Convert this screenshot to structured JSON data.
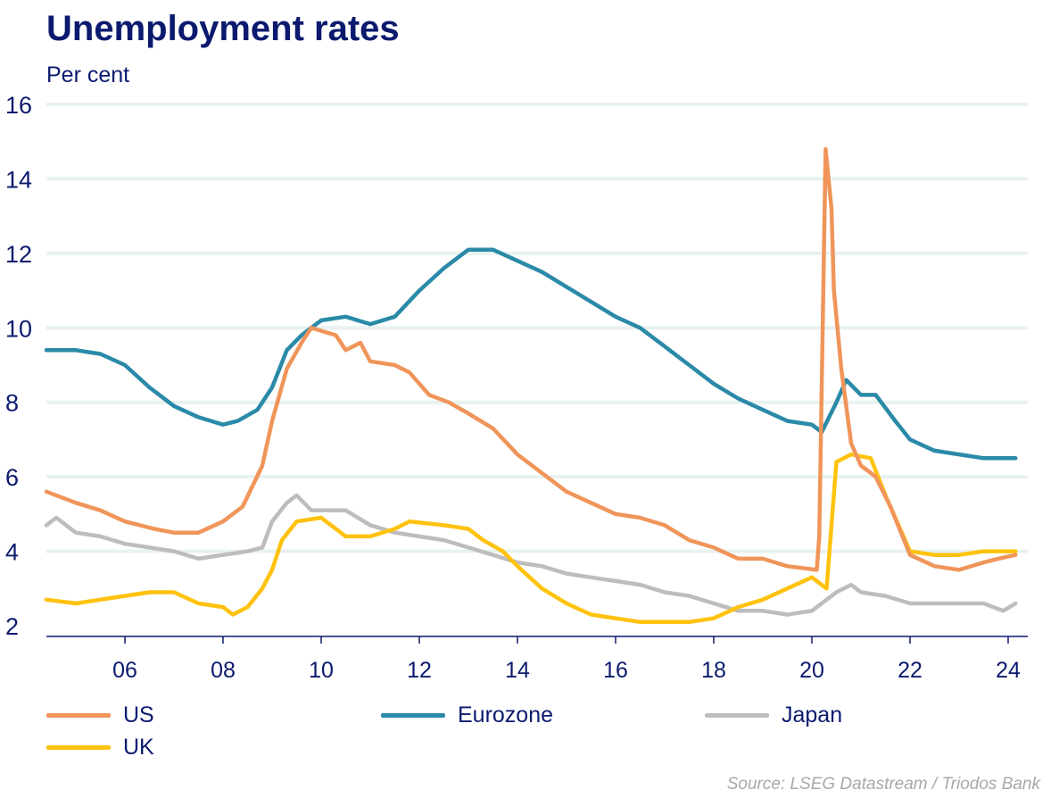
{
  "title": "Unemployment rates",
  "unit_label": "Per cent",
  "source": "Source: LSEG Datastream / Triodos Bank",
  "colors": {
    "axis_text": "#0b1a6e",
    "gridline": "#e8f2f0",
    "us": "#f0955a",
    "eurozone": "#2b8aa8",
    "japan": "#bdbdbd",
    "uk": "#ffc20e"
  },
  "legend": [
    {
      "key": "us",
      "label": "US"
    },
    {
      "key": "eurozone",
      "label": "Eurozone"
    },
    {
      "key": "japan",
      "label": "Japan"
    },
    {
      "key": "uk",
      "label": "UK"
    }
  ],
  "chart_data": {
    "type": "line",
    "title": "Unemployment rates",
    "ylabel": "Per cent",
    "xlabel": "",
    "xlim": [
      2004.4,
      2024.4
    ],
    "ylim": [
      2,
      16
    ],
    "yticks": [
      2,
      4,
      6,
      8,
      10,
      12,
      14,
      16
    ],
    "ytick_labels": [
      "2",
      "4",
      "6",
      "8",
      "10",
      "12",
      "14",
      "16"
    ],
    "xticks": [
      2006,
      2008,
      2010,
      2012,
      2014,
      2016,
      2018,
      2020,
      2022,
      2024
    ],
    "xtick_labels": [
      "06",
      "08",
      "10",
      "12",
      "14",
      "16",
      "18",
      "20",
      "22",
      "24"
    ],
    "grid": "horizontal",
    "legend_position": "bottom",
    "series": [
      {
        "name": "US",
        "key": "us",
        "points": [
          [
            2004.4,
            5.6
          ],
          [
            2005.0,
            5.3
          ],
          [
            2005.5,
            5.1
          ],
          [
            2006.0,
            4.8
          ],
          [
            2006.6,
            4.6
          ],
          [
            2007.0,
            4.5
          ],
          [
            2007.5,
            4.5
          ],
          [
            2008.0,
            4.8
          ],
          [
            2008.4,
            5.2
          ],
          [
            2008.8,
            6.3
          ],
          [
            2009.0,
            7.5
          ],
          [
            2009.3,
            8.9
          ],
          [
            2009.6,
            9.6
          ],
          [
            2009.8,
            10.0
          ],
          [
            2010.3,
            9.8
          ],
          [
            2010.5,
            9.4
          ],
          [
            2010.8,
            9.6
          ],
          [
            2011.0,
            9.1
          ],
          [
            2011.5,
            9.0
          ],
          [
            2011.8,
            8.8
          ],
          [
            2012.2,
            8.2
          ],
          [
            2012.6,
            8.0
          ],
          [
            2013.0,
            7.7
          ],
          [
            2013.5,
            7.3
          ],
          [
            2014.0,
            6.6
          ],
          [
            2014.5,
            6.1
          ],
          [
            2015.0,
            5.6
          ],
          [
            2015.5,
            5.3
          ],
          [
            2016.0,
            5.0
          ],
          [
            2016.5,
            4.9
          ],
          [
            2017.0,
            4.7
          ],
          [
            2017.5,
            4.3
          ],
          [
            2018.0,
            4.1
          ],
          [
            2018.5,
            3.8
          ],
          [
            2019.0,
            3.8
          ],
          [
            2019.5,
            3.6
          ],
          [
            2020.1,
            3.5
          ],
          [
            2020.15,
            4.4
          ],
          [
            2020.28,
            14.8
          ],
          [
            2020.4,
            13.2
          ],
          [
            2020.45,
            11.0
          ],
          [
            2020.6,
            8.9
          ],
          [
            2020.8,
            6.9
          ],
          [
            2021.0,
            6.3
          ],
          [
            2021.3,
            6.0
          ],
          [
            2021.6,
            5.2
          ],
          [
            2022.0,
            3.9
          ],
          [
            2022.5,
            3.6
          ],
          [
            2023.0,
            3.5
          ],
          [
            2023.5,
            3.7
          ],
          [
            2023.8,
            3.8
          ],
          [
            2024.15,
            3.9
          ]
        ]
      },
      {
        "name": "Eurozone",
        "key": "eurozone",
        "points": [
          [
            2004.4,
            9.4
          ],
          [
            2005.0,
            9.4
          ],
          [
            2005.5,
            9.3
          ],
          [
            2006.0,
            9.0
          ],
          [
            2006.5,
            8.4
          ],
          [
            2007.0,
            7.9
          ],
          [
            2007.5,
            7.6
          ],
          [
            2008.0,
            7.4
          ],
          [
            2008.3,
            7.5
          ],
          [
            2008.7,
            7.8
          ],
          [
            2009.0,
            8.4
          ],
          [
            2009.3,
            9.4
          ],
          [
            2009.6,
            9.8
          ],
          [
            2010.0,
            10.2
          ],
          [
            2010.5,
            10.3
          ],
          [
            2011.0,
            10.1
          ],
          [
            2011.5,
            10.3
          ],
          [
            2012.0,
            11.0
          ],
          [
            2012.5,
            11.6
          ],
          [
            2013.0,
            12.1
          ],
          [
            2013.5,
            12.1
          ],
          [
            2014.0,
            11.8
          ],
          [
            2014.5,
            11.5
          ],
          [
            2015.0,
            11.1
          ],
          [
            2015.5,
            10.7
          ],
          [
            2016.0,
            10.3
          ],
          [
            2016.5,
            10.0
          ],
          [
            2017.0,
            9.5
          ],
          [
            2017.5,
            9.0
          ],
          [
            2018.0,
            8.5
          ],
          [
            2018.5,
            8.1
          ],
          [
            2019.0,
            7.8
          ],
          [
            2019.5,
            7.5
          ],
          [
            2020.0,
            7.4
          ],
          [
            2020.2,
            7.2
          ],
          [
            2020.5,
            8.0
          ],
          [
            2020.7,
            8.6
          ],
          [
            2021.0,
            8.2
          ],
          [
            2021.3,
            8.2
          ],
          [
            2021.7,
            7.5
          ],
          [
            2022.0,
            7.0
          ],
          [
            2022.5,
            6.7
          ],
          [
            2023.0,
            6.6
          ],
          [
            2023.5,
            6.5
          ],
          [
            2024.15,
            6.5
          ]
        ]
      },
      {
        "name": "Japan",
        "key": "japan",
        "points": [
          [
            2004.4,
            4.7
          ],
          [
            2004.6,
            4.9
          ],
          [
            2005.0,
            4.5
          ],
          [
            2005.5,
            4.4
          ],
          [
            2006.0,
            4.2
          ],
          [
            2006.5,
            4.1
          ],
          [
            2007.0,
            4.0
          ],
          [
            2007.5,
            3.8
          ],
          [
            2008.0,
            3.9
          ],
          [
            2008.5,
            4.0
          ],
          [
            2008.8,
            4.1
          ],
          [
            2009.0,
            4.8
          ],
          [
            2009.3,
            5.3
          ],
          [
            2009.5,
            5.5
          ],
          [
            2009.8,
            5.1
          ],
          [
            2010.5,
            5.1
          ],
          [
            2011.0,
            4.7
          ],
          [
            2011.5,
            4.5
          ],
          [
            2012.0,
            4.4
          ],
          [
            2012.5,
            4.3
          ],
          [
            2013.0,
            4.1
          ],
          [
            2013.5,
            3.9
          ],
          [
            2014.0,
            3.7
          ],
          [
            2014.5,
            3.6
          ],
          [
            2015.0,
            3.4
          ],
          [
            2015.5,
            3.3
          ],
          [
            2016.0,
            3.2
          ],
          [
            2016.5,
            3.1
          ],
          [
            2017.0,
            2.9
          ],
          [
            2017.5,
            2.8
          ],
          [
            2018.0,
            2.6
          ],
          [
            2018.5,
            2.4
          ],
          [
            2019.0,
            2.4
          ],
          [
            2019.5,
            2.3
          ],
          [
            2020.0,
            2.4
          ],
          [
            2020.5,
            2.9
          ],
          [
            2020.8,
            3.1
          ],
          [
            2021.0,
            2.9
          ],
          [
            2021.5,
            2.8
          ],
          [
            2022.0,
            2.6
          ],
          [
            2022.5,
            2.6
          ],
          [
            2023.0,
            2.6
          ],
          [
            2023.5,
            2.6
          ],
          [
            2023.9,
            2.4
          ],
          [
            2024.15,
            2.6
          ]
        ]
      },
      {
        "name": "UK",
        "key": "uk",
        "points": [
          [
            2004.4,
            2.7
          ],
          [
            2005.0,
            2.6
          ],
          [
            2005.5,
            2.7
          ],
          [
            2006.0,
            2.8
          ],
          [
            2006.5,
            2.9
          ],
          [
            2007.0,
            2.9
          ],
          [
            2007.5,
            2.6
          ],
          [
            2008.0,
            2.5
          ],
          [
            2008.2,
            2.3
          ],
          [
            2008.5,
            2.5
          ],
          [
            2008.8,
            3.0
          ],
          [
            2009.0,
            3.5
          ],
          [
            2009.2,
            4.3
          ],
          [
            2009.5,
            4.8
          ],
          [
            2010.0,
            4.9
          ],
          [
            2010.5,
            4.4
          ],
          [
            2011.0,
            4.4
          ],
          [
            2011.5,
            4.6
          ],
          [
            2011.8,
            4.8
          ],
          [
            2012.5,
            4.7
          ],
          [
            2013.0,
            4.6
          ],
          [
            2013.3,
            4.3
          ],
          [
            2013.7,
            4.0
          ],
          [
            2014.0,
            3.6
          ],
          [
            2014.5,
            3.0
          ],
          [
            2015.0,
            2.6
          ],
          [
            2015.5,
            2.3
          ],
          [
            2016.0,
            2.2
          ],
          [
            2016.5,
            2.1
          ],
          [
            2017.0,
            2.1
          ],
          [
            2017.5,
            2.1
          ],
          [
            2018.0,
            2.2
          ],
          [
            2018.5,
            2.5
          ],
          [
            2019.0,
            2.7
          ],
          [
            2019.5,
            3.0
          ],
          [
            2020.0,
            3.3
          ],
          [
            2020.3,
            3.0
          ],
          [
            2020.5,
            6.4
          ],
          [
            2020.8,
            6.6
          ],
          [
            2021.2,
            6.5
          ],
          [
            2021.5,
            5.5
          ],
          [
            2022.0,
            4.0
          ],
          [
            2022.5,
            3.9
          ],
          [
            2023.0,
            3.9
          ],
          [
            2023.5,
            4.0
          ],
          [
            2024.15,
            4.0
          ]
        ]
      }
    ]
  }
}
